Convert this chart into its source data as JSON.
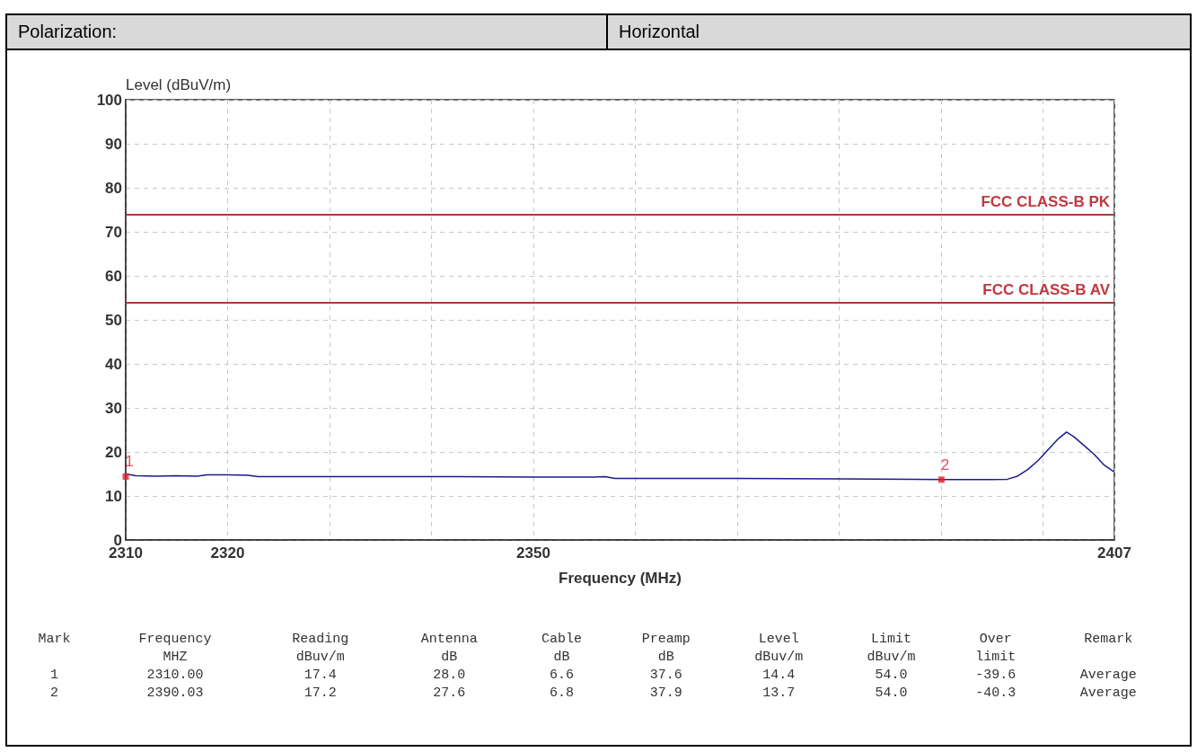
{
  "chart_data": {
    "type": "line",
    "xlabel": "Frequency (MHz)",
    "ylabel": "Level (dBuV/m)",
    "xlim": [
      2310,
      2407
    ],
    "xticks": [
      2310,
      2320,
      {
        "value": 2330,
        "label": null
      },
      {
        "value": 2340,
        "label": null
      },
      2350,
      {
        "value": 2360,
        "label": null
      },
      {
        "value": 2370,
        "label": null
      },
      {
        "value": 2380,
        "label": null
      },
      {
        "value": 2390,
        "label": null
      },
      {
        "value": 2400,
        "label": null
      },
      2407
    ],
    "ylim": [
      0,
      100
    ],
    "yticks": [
      0,
      10,
      20,
      30,
      40,
      50,
      60,
      70,
      80,
      90,
      100
    ],
    "grid": true,
    "line_style": "solid",
    "marker": "none",
    "series": [
      {
        "color": "#1c1c8c",
        "x": [
          2310,
          2311,
          2313,
          2315,
          2317,
          2318,
          2320,
          2322,
          2323,
          2330,
          2340,
          2350,
          2356,
          2357,
          2358,
          2370,
          2380,
          2390,
          2395,
          2396.5,
          2397.5,
          2398.5,
          2399.5,
          2400.5,
          2401.5,
          2402.3,
          2403,
          2404,
          2405,
          2406,
          2406.9
        ],
        "values": [
          15,
          14.6,
          14.5,
          14.6,
          14.5,
          14.8,
          14.8,
          14.7,
          14.4,
          14.4,
          14.4,
          14.3,
          14.3,
          14.4,
          14.0,
          14.0,
          13.9,
          13.7,
          13.7,
          13.8,
          14.5,
          16,
          18,
          20.5,
          23,
          24.5,
          23.5,
          21.5,
          19.5,
          17,
          15.6
        ]
      },
      {
        "type": "scatter",
        "color": "#e0202a",
        "marker": "square",
        "x": [
          2310,
          2390.03
        ],
        "values": [
          14.4,
          13.7
        ]
      }
    ],
    "ref_lines": [
      {
        "axis": "y",
        "value": 74,
        "label": "FCC CLASS-B PK",
        "color": "#a83a3e"
      },
      {
        "axis": "y",
        "value": 54,
        "label": "FCC CLASS-B AV",
        "color": "#a83a3e"
      }
    ],
    "annotations": [
      "Polarization:",
      "Horizontal",
      "Mark",
      "Frequency\nMHZ",
      "Reading\ndBuv/m",
      "Antenna\ndB",
      "Cable\ndB",
      "Preamp\ndB",
      "Level\ndBuv/m",
      "Limit\ndBuv/m",
      "Over\nlimit",
      "Remark",
      "1",
      "2310.00",
      "17.4",
      "28.0",
      "6.6",
      "37.6",
      "14.4",
      "54.0",
      "-39.6",
      "Average",
      "2",
      "2390.03",
      "17.2",
      "27.6",
      "6.8",
      "37.9",
      "13.7",
      "54.0",
      "-40.3",
      "Average",
      {
        "text": "1",
        "x": 2310,
        "y": 14.4
      },
      {
        "text": "2",
        "x": 2390.03,
        "y": 13.7
      }
    ]
  }
}
